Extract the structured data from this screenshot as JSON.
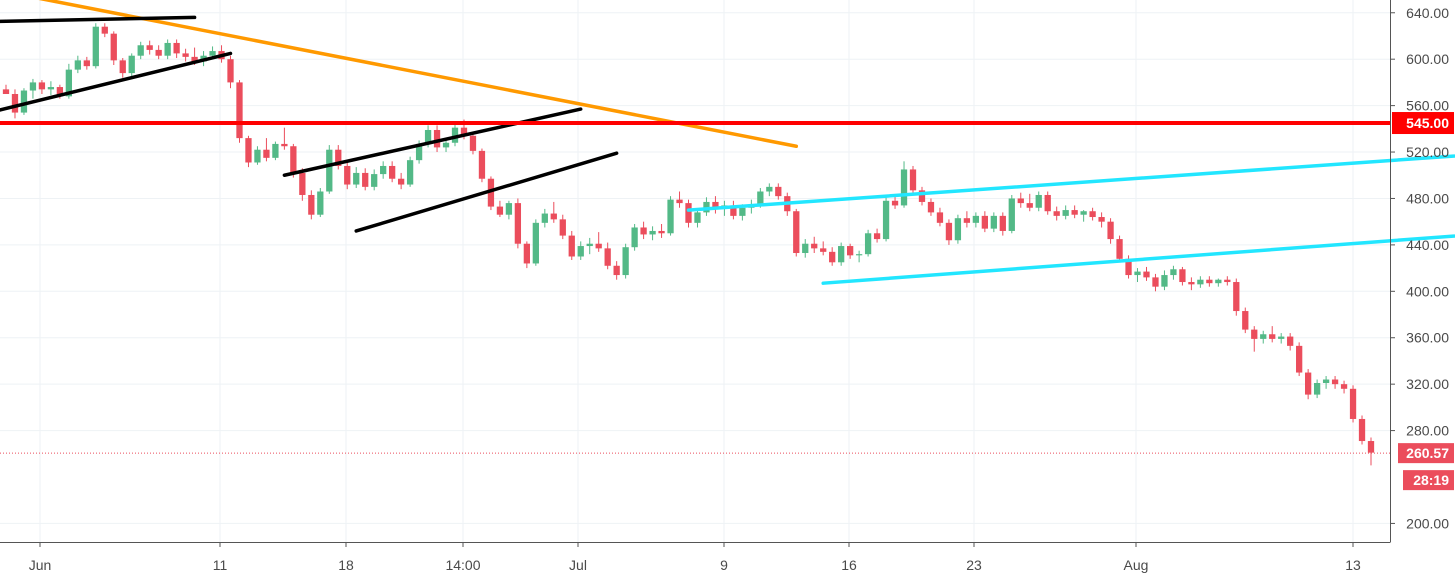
{
  "colors": {
    "up": "#53b987",
    "down": "#eb4d5c",
    "grid": "#eef2f5",
    "axis": "#555555",
    "support_resistance": "#ff0000",
    "trendline": "#ff9900",
    "channel": "#22e6ff",
    "pattern_lines": "#000000",
    "current_price": "#eb4d5c"
  },
  "chart_data": {
    "type": "candlestick",
    "y_axis": {
      "ticks": [
        "640.00",
        "600.00",
        "560.00",
        "520.00",
        "480.00",
        "440.00",
        "400.00",
        "360.00",
        "320.00",
        "280.00",
        "200.00"
      ],
      "range": [
        184,
        652
      ]
    },
    "x_axis": {
      "labels": [
        "Jun",
        "11",
        "18",
        "14:00",
        "Jul",
        "9",
        "16",
        "23",
        "Aug",
        "13"
      ]
    },
    "horizontal_level": {
      "value": 545,
      "label": "545.00"
    },
    "current_price": {
      "value": 260.57,
      "label": "260.57",
      "countdown": "28:19"
    },
    "drawn_lines": [
      {
        "name": "orange-trendline",
        "color": "trendline",
        "from": [
          0.0,
          658
        ],
        "to": [
          8.8,
          525
        ]
      },
      {
        "name": "black-line-1",
        "color": "pattern_lines",
        "from": [
          -2.4,
          629
        ],
        "to": [
          2.1,
          636
        ]
      },
      {
        "name": "black-line-2",
        "color": "pattern_lines",
        "from": [
          -2.4,
          512
        ],
        "to": [
          2.5,
          605
        ]
      },
      {
        "name": "black-line-3",
        "color": "pattern_lines",
        "from": [
          3.1,
          500
        ],
        "to": [
          6.4,
          557
        ]
      },
      {
        "name": "black-line-4",
        "color": "pattern_lines",
        "from": [
          3.9,
          452
        ],
        "to": [
          6.8,
          519
        ]
      },
      {
        "name": "cyan-channel-upper",
        "color": "channel",
        "from": [
          7.6,
          470
        ],
        "to": [
          17.3,
          523
        ]
      },
      {
        "name": "cyan-channel-lower",
        "color": "channel",
        "from": [
          9.1,
          407
        ],
        "to": [
          19.3,
          466
        ]
      }
    ],
    "candles": [
      {
        "o": 574,
        "h": 578,
        "l": 570,
        "c": 570
      },
      {
        "o": 570,
        "h": 574,
        "l": 549,
        "c": 554
      },
      {
        "o": 554,
        "h": 575,
        "l": 552,
        "c": 573
      },
      {
        "o": 573,
        "h": 583,
        "l": 566,
        "c": 580
      },
      {
        "o": 580,
        "h": 582,
        "l": 570,
        "c": 574
      },
      {
        "o": 574,
        "h": 581,
        "l": 569,
        "c": 576
      },
      {
        "o": 576,
        "h": 578,
        "l": 566,
        "c": 568
      },
      {
        "o": 568,
        "h": 596,
        "l": 566,
        "c": 591
      },
      {
        "o": 591,
        "h": 603,
        "l": 588,
        "c": 599
      },
      {
        "o": 599,
        "h": 602,
        "l": 591,
        "c": 594
      },
      {
        "o": 594,
        "h": 631,
        "l": 592,
        "c": 628
      },
      {
        "o": 628,
        "h": 631,
        "l": 619,
        "c": 622
      },
      {
        "o": 622,
        "h": 624,
        "l": 595,
        "c": 599
      },
      {
        "o": 599,
        "h": 601,
        "l": 584,
        "c": 588
      },
      {
        "o": 588,
        "h": 605,
        "l": 585,
        "c": 603
      },
      {
        "o": 603,
        "h": 615,
        "l": 600,
        "c": 612
      },
      {
        "o": 612,
        "h": 616,
        "l": 604,
        "c": 608
      },
      {
        "o": 608,
        "h": 612,
        "l": 600,
        "c": 603
      },
      {
        "o": 603,
        "h": 617,
        "l": 600,
        "c": 614
      },
      {
        "o": 614,
        "h": 617,
        "l": 601,
        "c": 605
      },
      {
        "o": 605,
        "h": 609,
        "l": 598,
        "c": 602
      },
      {
        "o": 602,
        "h": 610,
        "l": 595,
        "c": 598
      },
      {
        "o": 598,
        "h": 607,
        "l": 594,
        "c": 603
      },
      {
        "o": 603,
        "h": 611,
        "l": 600,
        "c": 607
      },
      {
        "o": 607,
        "h": 612,
        "l": 597,
        "c": 600
      },
      {
        "o": 600,
        "h": 603,
        "l": 575,
        "c": 580
      },
      {
        "o": 580,
        "h": 582,
        "l": 528,
        "c": 532
      },
      {
        "o": 532,
        "h": 534,
        "l": 507,
        "c": 511
      },
      {
        "o": 511,
        "h": 525,
        "l": 509,
        "c": 522
      },
      {
        "o": 522,
        "h": 532,
        "l": 512,
        "c": 515
      },
      {
        "o": 515,
        "h": 529,
        "l": 513,
        "c": 527
      },
      {
        "o": 527,
        "h": 541,
        "l": 522,
        "c": 525
      },
      {
        "o": 525,
        "h": 527,
        "l": 498,
        "c": 502
      },
      {
        "o": 502,
        "h": 506,
        "l": 478,
        "c": 483
      },
      {
        "o": 483,
        "h": 487,
        "l": 462,
        "c": 466
      },
      {
        "o": 466,
        "h": 489,
        "l": 464,
        "c": 486
      },
      {
        "o": 486,
        "h": 526,
        "l": 484,
        "c": 522
      },
      {
        "o": 522,
        "h": 526,
        "l": 505,
        "c": 508
      },
      {
        "o": 508,
        "h": 511,
        "l": 488,
        "c": 492
      },
      {
        "o": 492,
        "h": 507,
        "l": 489,
        "c": 502
      },
      {
        "o": 502,
        "h": 506,
        "l": 487,
        "c": 490
      },
      {
        "o": 490,
        "h": 505,
        "l": 487,
        "c": 501
      },
      {
        "o": 501,
        "h": 512,
        "l": 497,
        "c": 508
      },
      {
        "o": 508,
        "h": 512,
        "l": 494,
        "c": 497
      },
      {
        "o": 497,
        "h": 502,
        "l": 488,
        "c": 492
      },
      {
        "o": 492,
        "h": 516,
        "l": 490,
        "c": 513
      },
      {
        "o": 513,
        "h": 530,
        "l": 510,
        "c": 527
      },
      {
        "o": 527,
        "h": 543,
        "l": 524,
        "c": 539
      },
      {
        "o": 539,
        "h": 543,
        "l": 520,
        "c": 524
      },
      {
        "o": 524,
        "h": 531,
        "l": 520,
        "c": 528
      },
      {
        "o": 528,
        "h": 545,
        "l": 525,
        "c": 541
      },
      {
        "o": 541,
        "h": 548,
        "l": 531,
        "c": 534
      },
      {
        "o": 534,
        "h": 537,
        "l": 518,
        "c": 521
      },
      {
        "o": 521,
        "h": 523,
        "l": 494,
        "c": 497
      },
      {
        "o": 497,
        "h": 499,
        "l": 470,
        "c": 473
      },
      {
        "o": 473,
        "h": 478,
        "l": 464,
        "c": 466
      },
      {
        "o": 466,
        "h": 478,
        "l": 462,
        "c": 476
      },
      {
        "o": 476,
        "h": 480,
        "l": 437,
        "c": 441
      },
      {
        "o": 441,
        "h": 443,
        "l": 420,
        "c": 424
      },
      {
        "o": 424,
        "h": 462,
        "l": 422,
        "c": 459
      },
      {
        "o": 459,
        "h": 471,
        "l": 455,
        "c": 467
      },
      {
        "o": 467,
        "h": 477,
        "l": 459,
        "c": 462
      },
      {
        "o": 462,
        "h": 466,
        "l": 445,
        "c": 448
      },
      {
        "o": 448,
        "h": 452,
        "l": 427,
        "c": 430
      },
      {
        "o": 430,
        "h": 443,
        "l": 427,
        "c": 439
      },
      {
        "o": 439,
        "h": 446,
        "l": 432,
        "c": 441
      },
      {
        "o": 441,
        "h": 451,
        "l": 434,
        "c": 437
      },
      {
        "o": 437,
        "h": 442,
        "l": 419,
        "c": 422
      },
      {
        "o": 422,
        "h": 426,
        "l": 410,
        "c": 414
      },
      {
        "o": 414,
        "h": 441,
        "l": 411,
        "c": 438
      },
      {
        "o": 438,
        "h": 458,
        "l": 435,
        "c": 455
      },
      {
        "o": 455,
        "h": 460,
        "l": 445,
        "c": 449
      },
      {
        "o": 449,
        "h": 456,
        "l": 444,
        "c": 452
      },
      {
        "o": 452,
        "h": 458,
        "l": 446,
        "c": 450
      },
      {
        "o": 450,
        "h": 482,
        "l": 448,
        "c": 479
      },
      {
        "o": 479,
        "h": 486,
        "l": 472,
        "c": 476
      },
      {
        "o": 476,
        "h": 479,
        "l": 455,
        "c": 459
      },
      {
        "o": 459,
        "h": 471,
        "l": 455,
        "c": 468
      },
      {
        "o": 468,
        "h": 481,
        "l": 465,
        "c": 477
      },
      {
        "o": 477,
        "h": 482,
        "l": 467,
        "c": 471
      },
      {
        "o": 471,
        "h": 478,
        "l": 465,
        "c": 474
      },
      {
        "o": 474,
        "h": 478,
        "l": 462,
        "c": 465
      },
      {
        "o": 465,
        "h": 475,
        "l": 461,
        "c": 472
      },
      {
        "o": 472,
        "h": 479,
        "l": 467,
        "c": 475
      },
      {
        "o": 475,
        "h": 489,
        "l": 472,
        "c": 486
      },
      {
        "o": 486,
        "h": 493,
        "l": 482,
        "c": 490
      },
      {
        "o": 490,
        "h": 493,
        "l": 479,
        "c": 482
      },
      {
        "o": 482,
        "h": 485,
        "l": 465,
        "c": 469
      },
      {
        "o": 469,
        "h": 471,
        "l": 430,
        "c": 433
      },
      {
        "o": 433,
        "h": 445,
        "l": 429,
        "c": 441
      },
      {
        "o": 441,
        "h": 447,
        "l": 433,
        "c": 437
      },
      {
        "o": 437,
        "h": 443,
        "l": 431,
        "c": 434
      },
      {
        "o": 434,
        "h": 438,
        "l": 422,
        "c": 425
      },
      {
        "o": 425,
        "h": 442,
        "l": 422,
        "c": 439
      },
      {
        "o": 439,
        "h": 441,
        "l": 428,
        "c": 431
      },
      {
        "o": 431,
        "h": 435,
        "l": 425,
        "c": 432
      },
      {
        "o": 432,
        "h": 453,
        "l": 430,
        "c": 450
      },
      {
        "o": 450,
        "h": 454,
        "l": 442,
        "c": 445
      },
      {
        "o": 445,
        "h": 481,
        "l": 443,
        "c": 478
      },
      {
        "o": 478,
        "h": 483,
        "l": 471,
        "c": 474
      },
      {
        "o": 474,
        "h": 512,
        "l": 472,
        "c": 505
      },
      {
        "o": 505,
        "h": 508,
        "l": 484,
        "c": 487
      },
      {
        "o": 487,
        "h": 490,
        "l": 474,
        "c": 477
      },
      {
        "o": 477,
        "h": 480,
        "l": 465,
        "c": 468
      },
      {
        "o": 468,
        "h": 472,
        "l": 456,
        "c": 459
      },
      {
        "o": 459,
        "h": 462,
        "l": 440,
        "c": 444
      },
      {
        "o": 444,
        "h": 466,
        "l": 441,
        "c": 463
      },
      {
        "o": 463,
        "h": 469,
        "l": 455,
        "c": 459
      },
      {
        "o": 459,
        "h": 468,
        "l": 455,
        "c": 465
      },
      {
        "o": 465,
        "h": 469,
        "l": 451,
        "c": 454
      },
      {
        "o": 454,
        "h": 468,
        "l": 451,
        "c": 465
      },
      {
        "o": 465,
        "h": 468,
        "l": 448,
        "c": 452
      },
      {
        "o": 452,
        "h": 483,
        "l": 450,
        "c": 480
      },
      {
        "o": 480,
        "h": 485,
        "l": 472,
        "c": 476
      },
      {
        "o": 476,
        "h": 484,
        "l": 469,
        "c": 472
      },
      {
        "o": 472,
        "h": 486,
        "l": 469,
        "c": 483
      },
      {
        "o": 483,
        "h": 486,
        "l": 466,
        "c": 469
      },
      {
        "o": 469,
        "h": 473,
        "l": 461,
        "c": 465
      },
      {
        "o": 465,
        "h": 474,
        "l": 462,
        "c": 470
      },
      {
        "o": 470,
        "h": 474,
        "l": 463,
        "c": 466
      },
      {
        "o": 466,
        "h": 470,
        "l": 460,
        "c": 469
      },
      {
        "o": 469,
        "h": 472,
        "l": 461,
        "c": 464
      },
      {
        "o": 464,
        "h": 468,
        "l": 455,
        "c": 460
      },
      {
        "o": 460,
        "h": 463,
        "l": 441,
        "c": 445
      },
      {
        "o": 445,
        "h": 448,
        "l": 425,
        "c": 428
      },
      {
        "o": 428,
        "h": 431,
        "l": 411,
        "c": 414
      },
      {
        "o": 414,
        "h": 420,
        "l": 408,
        "c": 417
      },
      {
        "o": 417,
        "h": 421,
        "l": 409,
        "c": 412
      },
      {
        "o": 412,
        "h": 415,
        "l": 400,
        "c": 404
      },
      {
        "o": 404,
        "h": 418,
        "l": 401,
        "c": 414
      },
      {
        "o": 414,
        "h": 422,
        "l": 410,
        "c": 419
      },
      {
        "o": 419,
        "h": 421,
        "l": 405,
        "c": 408
      },
      {
        "o": 408,
        "h": 412,
        "l": 401,
        "c": 406
      },
      {
        "o": 406,
        "h": 413,
        "l": 403,
        "c": 410
      },
      {
        "o": 410,
        "h": 413,
        "l": 404,
        "c": 407
      },
      {
        "o": 407,
        "h": 411,
        "l": 404,
        "c": 410
      },
      {
        "o": 410,
        "h": 413,
        "l": 405,
        "c": 408
      },
      {
        "o": 408,
        "h": 411,
        "l": 379,
        "c": 383
      },
      {
        "o": 383,
        "h": 386,
        "l": 364,
        "c": 367
      },
      {
        "o": 367,
        "h": 370,
        "l": 348,
        "c": 359
      },
      {
        "o": 359,
        "h": 366,
        "l": 355,
        "c": 363
      },
      {
        "o": 363,
        "h": 370,
        "l": 356,
        "c": 359
      },
      {
        "o": 359,
        "h": 364,
        "l": 355,
        "c": 361
      },
      {
        "o": 361,
        "h": 364,
        "l": 349,
        "c": 353
      },
      {
        "o": 353,
        "h": 356,
        "l": 327,
        "c": 330
      },
      {
        "o": 330,
        "h": 333,
        "l": 307,
        "c": 311
      },
      {
        "o": 311,
        "h": 324,
        "l": 308,
        "c": 321
      },
      {
        "o": 321,
        "h": 327,
        "l": 316,
        "c": 324
      },
      {
        "o": 324,
        "h": 327,
        "l": 316,
        "c": 320
      },
      {
        "o": 320,
        "h": 323,
        "l": 312,
        "c": 316
      },
      {
        "o": 316,
        "h": 319,
        "l": 287,
        "c": 290
      },
      {
        "o": 290,
        "h": 293,
        "l": 268,
        "c": 271
      },
      {
        "o": 271,
        "h": 274,
        "l": 250,
        "c": 261
      }
    ]
  }
}
